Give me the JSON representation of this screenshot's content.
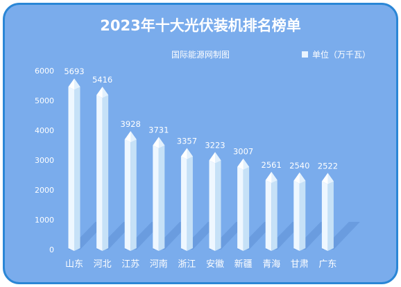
{
  "chart_data": {
    "type": "bar",
    "title": "2023年十大光伏装机排名榜单",
    "subtitle": "国际能源网制图",
    "legend": {
      "label": "单位（万千瓦）",
      "placement": "top-right"
    },
    "categories": [
      "山东",
      "河北",
      "江苏",
      "河南",
      "浙江",
      "安徽",
      "新疆",
      "青海",
      "甘肃",
      "广东"
    ],
    "values": [
      5693,
      5416,
      3928,
      3731,
      3357,
      3223,
      3007,
      2561,
      2540,
      2522
    ],
    "ylim": [
      0,
      6000
    ],
    "yticks": [
      0,
      1000,
      2000,
      3000,
      4000,
      5000,
      6000
    ],
    "colors": {
      "background": "#7aacec",
      "border": "#2a86d6",
      "bar": "#dcefff",
      "text": "#ffffff"
    }
  }
}
